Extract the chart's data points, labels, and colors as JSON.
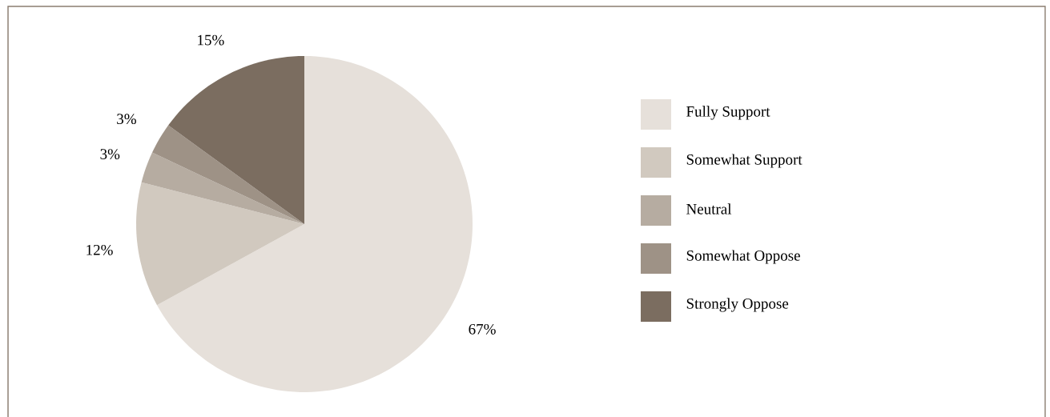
{
  "chart_data": {
    "type": "pie",
    "categories": [
      "Fully Support",
      "Somewhat Support",
      "Neutral",
      "Somewhat Oppose",
      "Strongly Oppose"
    ],
    "values": [
      67,
      12,
      3,
      3,
      15
    ],
    "value_labels": [
      "67%",
      "12%",
      "3%",
      "3%",
      "15%"
    ],
    "colors": [
      "#e6e0da",
      "#d1c9bf",
      "#b6aca1",
      "#9e9286",
      "#7b6d60"
    ],
    "legend": "right"
  }
}
